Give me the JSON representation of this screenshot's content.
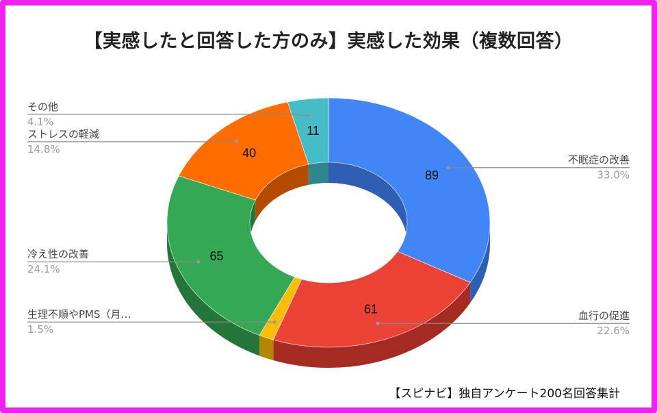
{
  "page": {
    "title": "【実感したと回答した方のみ】実感した効果（複数回答）",
    "source": "【スピナビ】独自アンケート200名回答集計"
  },
  "chart_data": {
    "type": "pie",
    "style": "donut-3d",
    "series": [
      {
        "name": "不眠症の改善",
        "value": 89,
        "percent": "33.0%",
        "color": "#4285f4",
        "dark": "#2f5fb3",
        "side": "right"
      },
      {
        "name": "血行の促進",
        "value": 61,
        "percent": "22.6%",
        "color": "#ea4335",
        "dark": "#a52b22",
        "side": "right"
      },
      {
        "name": "生理不順やPMS（月…",
        "value": 4,
        "percent": "1.5%",
        "color": "#fbbc04",
        "dark": "#b38600",
        "side": "left"
      },
      {
        "name": "冷え性の改善",
        "value": 65,
        "percent": "24.1%",
        "color": "#34a853",
        "dark": "#23753a",
        "side": "left"
      },
      {
        "name": "ストレスの軽減",
        "value": 40,
        "percent": "14.8%",
        "color": "#ff6d01",
        "dark": "#b34c00",
        "side": "left"
      },
      {
        "name": "その他",
        "value": 11,
        "percent": "4.1%",
        "color": "#46bdc6",
        "dark": "#2f858c",
        "side": "left"
      }
    ],
    "value_labels_shown": [
      89,
      61,
      65,
      40,
      11
    ],
    "legend": "callout-labels"
  }
}
